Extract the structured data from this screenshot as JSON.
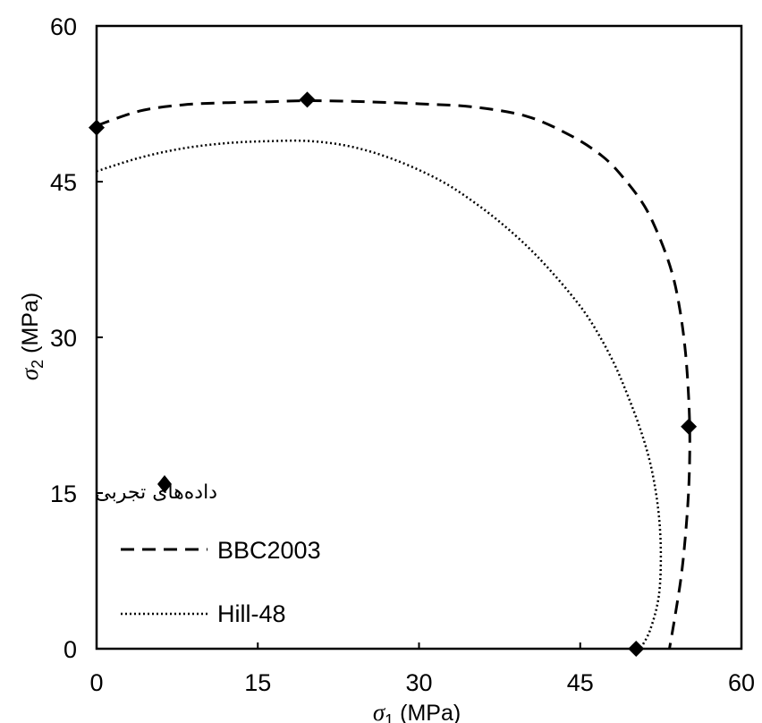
{
  "chart_data": {
    "type": "scatter",
    "xlabel": {
      "symbol": "σ",
      "sub": "1",
      "unit": " (MPa)"
    },
    "ylabel": {
      "symbol": "σ",
      "sub": "2",
      "unit": " (MPa)"
    },
    "xlim": [
      0,
      60
    ],
    "ylim": [
      0,
      60
    ],
    "xticks": [
      "0",
      "15",
      "30",
      "45",
      "60"
    ],
    "yticks": [
      "0",
      "15",
      "30",
      "45",
      "60"
    ],
    "grid": false,
    "legend_position": "bottom-left",
    "series": [
      {
        "name": "داده‌های تجربی",
        "kind": "markers",
        "marker": "diamond",
        "points": [
          [
            0,
            50.2
          ],
          [
            19.6,
            52.9
          ],
          [
            55.1,
            21.4
          ],
          [
            50.2,
            0
          ]
        ]
      },
      {
        "name": "BBC2003",
        "kind": "dashed",
        "points": [
          [
            0,
            50.4
          ],
          [
            4,
            51.8
          ],
          [
            8,
            52.4
          ],
          [
            12,
            52.6
          ],
          [
            16,
            52.7
          ],
          [
            20,
            52.8
          ],
          [
            25,
            52.7
          ],
          [
            30,
            52.5
          ],
          [
            35,
            52.2
          ],
          [
            40,
            51.3
          ],
          [
            44,
            49.5
          ],
          [
            47,
            47.5
          ],
          [
            49,
            45.4
          ],
          [
            51,
            42.6
          ],
          [
            52.5,
            39.3
          ],
          [
            53.6,
            36.0
          ],
          [
            54.3,
            32.5
          ],
          [
            54.8,
            28.5
          ],
          [
            55.1,
            24.0
          ],
          [
            55.2,
            20.0
          ],
          [
            55.1,
            15.5
          ],
          [
            54.8,
            11.0
          ],
          [
            54.4,
            7.0
          ],
          [
            53.8,
            3.0
          ],
          [
            53.3,
            0
          ]
        ]
      },
      {
        "name": "Hill-48",
        "kind": "dotted",
        "points": [
          [
            0,
            46.0
          ],
          [
            4,
            47.3
          ],
          [
            8,
            48.2
          ],
          [
            12,
            48.7
          ],
          [
            16,
            48.9
          ],
          [
            20,
            48.9
          ],
          [
            24,
            48.3
          ],
          [
            28,
            47.0
          ],
          [
            32,
            45.1
          ],
          [
            35,
            43.1
          ],
          [
            38,
            40.7
          ],
          [
            41,
            37.8
          ],
          [
            44,
            34.3
          ],
          [
            46,
            31.5
          ],
          [
            48,
            27.8
          ],
          [
            49.5,
            24.2
          ],
          [
            50.8,
            20.5
          ],
          [
            51.7,
            17.0
          ],
          [
            52.3,
            13.0
          ],
          [
            52.5,
            9.0
          ],
          [
            52.3,
            5.0
          ],
          [
            51.5,
            1.8
          ],
          [
            50.6,
            0
          ]
        ]
      }
    ]
  }
}
